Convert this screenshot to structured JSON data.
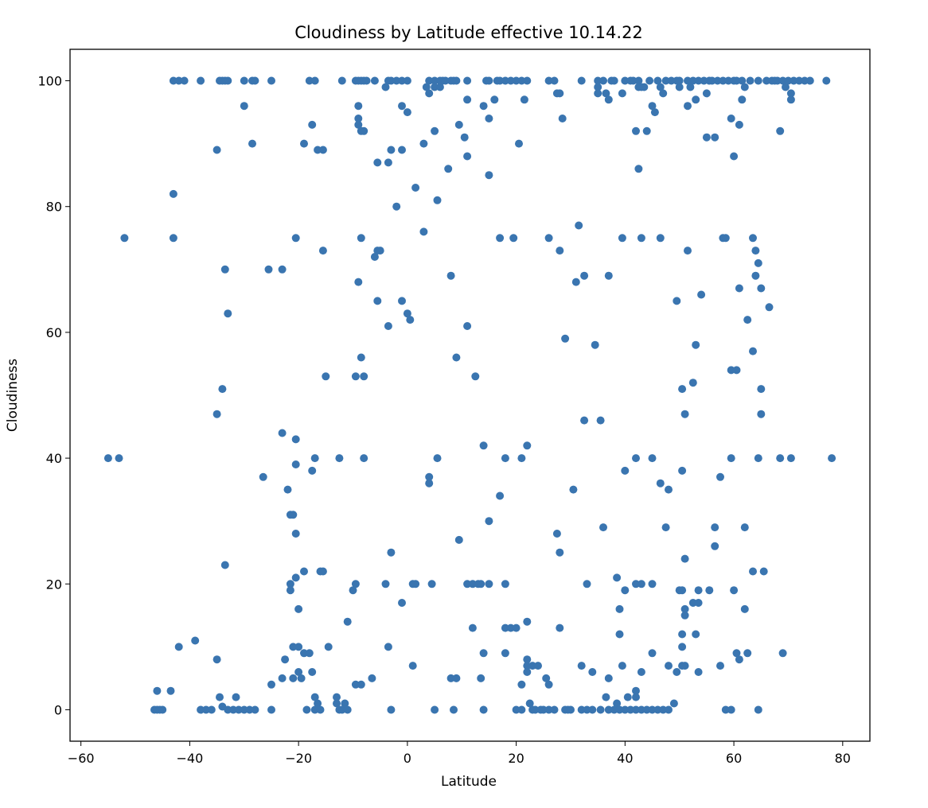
{
  "chart_data": {
    "type": "scatter",
    "title": "Cloudiness by Latitude effective 10.14.22",
    "xlabel": "Latitude",
    "ylabel": "Cloudiness",
    "xlim": [
      -62,
      85
    ],
    "ylim": [
      -5,
      105
    ],
    "xticks": [
      -60,
      -40,
      -20,
      0,
      20,
      40,
      60,
      80
    ],
    "yticks": [
      0,
      20,
      40,
      60,
      80,
      100
    ],
    "grid": false,
    "marker_color": "#3a75b0",
    "points": [
      [
        -55,
        40
      ],
      [
        -53,
        40
      ],
      [
        -52,
        75
      ],
      [
        -46.5,
        0
      ],
      [
        -46,
        0
      ],
      [
        -45.5,
        0
      ],
      [
        -45,
        0
      ],
      [
        -46,
        3
      ],
      [
        -43.5,
        3
      ],
      [
        -43,
        100
      ],
      [
        -42,
        100
      ],
      [
        -41,
        100
      ],
      [
        -38,
        100
      ],
      [
        -43,
        75
      ],
      [
        -43,
        82
      ],
      [
        -42,
        10
      ],
      [
        -39,
        11
      ],
      [
        -38,
        0
      ],
      [
        -37,
        0
      ],
      [
        -36,
        0
      ],
      [
        -35,
        8
      ],
      [
        -35,
        47
      ],
      [
        -35,
        89
      ],
      [
        -34.5,
        100
      ],
      [
        -34,
        100
      ],
      [
        -33.5,
        100
      ],
      [
        -33,
        100
      ],
      [
        -34,
        51
      ],
      [
        -33.5,
        70
      ],
      [
        -33,
        63
      ],
      [
        -33.5,
        23
      ],
      [
        -34.5,
        2
      ],
      [
        -34,
        0.5
      ],
      [
        -33,
        0
      ],
      [
        -32,
        0
      ],
      [
        -31.5,
        2
      ],
      [
        -31,
        0
      ],
      [
        -30,
        0
      ],
      [
        -29,
        0
      ],
      [
        -28,
        0
      ],
      [
        -30,
        100
      ],
      [
        -28.5,
        100
      ],
      [
        -28,
        100
      ],
      [
        -30,
        96
      ],
      [
        -28.5,
        90
      ],
      [
        -26.5,
        37
      ],
      [
        -25.5,
        70
      ],
      [
        -25,
        100
      ],
      [
        -25,
        4
      ],
      [
        -25,
        0
      ],
      [
        -23,
        70
      ],
      [
        -23,
        44
      ],
      [
        -22.5,
        8
      ],
      [
        -23,
        5
      ],
      [
        -22,
        35
      ],
      [
        -21.5,
        31
      ],
      [
        -21.5,
        20
      ],
      [
        -21.5,
        19
      ],
      [
        -21,
        31
      ],
      [
        -21,
        10
      ],
      [
        -20.5,
        43
      ],
      [
        -20.5,
        39
      ],
      [
        -20.5,
        28
      ],
      [
        -20.5,
        21
      ],
      [
        -20,
        16
      ],
      [
        -20,
        6
      ],
      [
        -20,
        10
      ],
      [
        -21,
        5
      ],
      [
        -19.5,
        5
      ],
      [
        -19,
        22
      ],
      [
        -19,
        9
      ],
      [
        -18.5,
        0
      ],
      [
        -20.5,
        75
      ],
      [
        -19,
        90
      ],
      [
        -18,
        100
      ],
      [
        -17,
        100
      ],
      [
        -17.5,
        93
      ],
      [
        -16.5,
        89
      ],
      [
        -15.5,
        89
      ],
      [
        -15.5,
        73
      ],
      [
        -15,
        53
      ],
      [
        -17.5,
        38
      ],
      [
        -17,
        40
      ],
      [
        -16,
        22
      ],
      [
        -15.5,
        22
      ],
      [
        -18,
        9
      ],
      [
        -17.5,
        6
      ],
      [
        -17,
        2
      ],
      [
        -16.5,
        1
      ],
      [
        -17,
        0
      ],
      [
        -16,
        0
      ],
      [
        -14.5,
        10
      ],
      [
        -13,
        2
      ],
      [
        -13,
        1
      ],
      [
        -12.5,
        0
      ],
      [
        -12,
        0
      ],
      [
        -11.5,
        1
      ],
      [
        -11,
        0
      ],
      [
        -12.5,
        40
      ],
      [
        -11,
        14
      ],
      [
        -12,
        100
      ],
      [
        -9.5,
        100
      ],
      [
        -9,
        100
      ],
      [
        -8.5,
        100
      ],
      [
        -8,
        100
      ],
      [
        -7.5,
        100
      ],
      [
        -6,
        100
      ],
      [
        -9,
        96
      ],
      [
        -9,
        94
      ],
      [
        -9,
        93
      ],
      [
        -8.5,
        92
      ],
      [
        -8,
        92
      ],
      [
        -9.5,
        53
      ],
      [
        -8,
        53
      ],
      [
        -8.5,
        56
      ],
      [
        -9,
        68
      ],
      [
        -8.5,
        75
      ],
      [
        -8,
        40
      ],
      [
        -10,
        19
      ],
      [
        -9.5,
        20
      ],
      [
        -9.5,
        4
      ],
      [
        -8.5,
        4
      ],
      [
        -6,
        72
      ],
      [
        -5.5,
        73
      ],
      [
        -5,
        73
      ],
      [
        -5.5,
        65
      ],
      [
        -5.5,
        87
      ],
      [
        -3.5,
        87
      ],
      [
        -3.5,
        61
      ],
      [
        -4,
        20
      ],
      [
        -6.5,
        5
      ],
      [
        -3.5,
        10
      ],
      [
        -3,
        0
      ],
      [
        -3,
        25
      ],
      [
        -4,
        99
      ],
      [
        -3.5,
        100
      ],
      [
        -3,
        100
      ],
      [
        -2,
        100
      ],
      [
        -1,
        100
      ],
      [
        0,
        100
      ],
      [
        -3,
        89
      ],
      [
        -1,
        89
      ],
      [
        -2,
        80
      ],
      [
        -1,
        96
      ],
      [
        0,
        95
      ],
      [
        -1,
        65
      ],
      [
        0,
        63
      ],
      [
        0.5,
        62
      ],
      [
        -1,
        17
      ],
      [
        1,
        20
      ],
      [
        1.5,
        20
      ],
      [
        1,
        7
      ],
      [
        1.5,
        83
      ],
      [
        3,
        76
      ],
      [
        3,
        90
      ],
      [
        3.5,
        99
      ],
      [
        4,
        100
      ],
      [
        4,
        98
      ],
      [
        5,
        100
      ],
      [
        5,
        99
      ],
      [
        6,
        99
      ],
      [
        6,
        100
      ],
      [
        6.5,
        100
      ],
      [
        7,
        100
      ],
      [
        8,
        100
      ],
      [
        8.5,
        100
      ],
      [
        9,
        100
      ],
      [
        5,
        92
      ],
      [
        5.5,
        81
      ],
      [
        4,
        37
      ],
      [
        4,
        36
      ],
      [
        4.5,
        20
      ],
      [
        5,
        0
      ],
      [
        5.5,
        40
      ],
      [
        7.5,
        86
      ],
      [
        8,
        69
      ],
      [
        8,
        5
      ],
      [
        8.5,
        0
      ],
      [
        9,
        5
      ],
      [
        9,
        56
      ],
      [
        9.5,
        27
      ],
      [
        9.5,
        93
      ],
      [
        10.5,
        91
      ],
      [
        11,
        88
      ],
      [
        11,
        97
      ],
      [
        11,
        100
      ],
      [
        11,
        61
      ],
      [
        11,
        20
      ],
      [
        12,
        20
      ],
      [
        12,
        13
      ],
      [
        12.5,
        53
      ],
      [
        13,
        20
      ],
      [
        13.5,
        5
      ],
      [
        13.5,
        20
      ],
      [
        14,
        96
      ],
      [
        14,
        9
      ],
      [
        14,
        0
      ],
      [
        14,
        42
      ],
      [
        14.5,
        100
      ],
      [
        15,
        100
      ],
      [
        15,
        94
      ],
      [
        15,
        85
      ],
      [
        15,
        30
      ],
      [
        15,
        20
      ],
      [
        16,
        97
      ],
      [
        16.5,
        100
      ],
      [
        17,
        100
      ],
      [
        17,
        34
      ],
      [
        17,
        75
      ],
      [
        18,
        100
      ],
      [
        18,
        40
      ],
      [
        18,
        20
      ],
      [
        18,
        13
      ],
      [
        18,
        9
      ],
      [
        19,
        100
      ],
      [
        19,
        13
      ],
      [
        20,
        100
      ],
      [
        19.5,
        75
      ],
      [
        20,
        13
      ],
      [
        20,
        0
      ],
      [
        20.5,
        90
      ],
      [
        21,
        100
      ],
      [
        21,
        40
      ],
      [
        21,
        4
      ],
      [
        21,
        0
      ],
      [
        21.5,
        97
      ],
      [
        22,
        100
      ],
      [
        22,
        42
      ],
      [
        22,
        14
      ],
      [
        22,
        8
      ],
      [
        22,
        7
      ],
      [
        22,
        6
      ],
      [
        22.5,
        1
      ],
      [
        23,
        0
      ],
      [
        23,
        7
      ],
      [
        23.5,
        0
      ],
      [
        24,
        7
      ],
      [
        24.5,
        0
      ],
      [
        25,
        0
      ],
      [
        25.5,
        5
      ],
      [
        26,
        100
      ],
      [
        26,
        75
      ],
      [
        26,
        4
      ],
      [
        26,
        0
      ],
      [
        27,
        100
      ],
      [
        27,
        0
      ],
      [
        27.5,
        98
      ],
      [
        27.5,
        28
      ],
      [
        28,
        98
      ],
      [
        28,
        73
      ],
      [
        28,
        25
      ],
      [
        28,
        13
      ],
      [
        28.5,
        94
      ],
      [
        29,
        59
      ],
      [
        29,
        0
      ],
      [
        29.5,
        0
      ],
      [
        30,
        0
      ],
      [
        30.5,
        35
      ],
      [
        31,
        68
      ],
      [
        31.5,
        77
      ],
      [
        32,
        100
      ],
      [
        32,
        7
      ],
      [
        32,
        0
      ],
      [
        32.5,
        46
      ],
      [
        32.5,
        69
      ],
      [
        33,
        20
      ],
      [
        33,
        0
      ],
      [
        34,
        6
      ],
      [
        34,
        0
      ],
      [
        34.5,
        58
      ],
      [
        35,
        100
      ],
      [
        35,
        99
      ],
      [
        35,
        98
      ],
      [
        35.5,
        46
      ],
      [
        35.5,
        0
      ],
      [
        36,
        29
      ],
      [
        36,
        100
      ],
      [
        36.5,
        98
      ],
      [
        36.5,
        2
      ],
      [
        37,
        97
      ],
      [
        37,
        69
      ],
      [
        37,
        5
      ],
      [
        37,
        0
      ],
      [
        37.5,
        100
      ],
      [
        38,
        100
      ],
      [
        38,
        0
      ],
      [
        38.5,
        1
      ],
      [
        38.5,
        21
      ],
      [
        39,
        16
      ],
      [
        39,
        12
      ],
      [
        39,
        0
      ],
      [
        39.5,
        98
      ],
      [
        39.5,
        75
      ],
      [
        39.5,
        7
      ],
      [
        40,
        100
      ],
      [
        40,
        38
      ],
      [
        40,
        19
      ],
      [
        40,
        0
      ],
      [
        40.5,
        2
      ],
      [
        41,
        100
      ],
      [
        41,
        0
      ],
      [
        41.5,
        100
      ],
      [
        42,
        92
      ],
      [
        42,
        40
      ],
      [
        42,
        20
      ],
      [
        42,
        3
      ],
      [
        42,
        2
      ],
      [
        42,
        0
      ],
      [
        42.5,
        100
      ],
      [
        42.5,
        86
      ],
      [
        42.5,
        99
      ],
      [
        43,
        99
      ],
      [
        43,
        75
      ],
      [
        43,
        20
      ],
      [
        43,
        6
      ],
      [
        43,
        0
      ],
      [
        43.5,
        99
      ],
      [
        44,
        92
      ],
      [
        44,
        0
      ],
      [
        44.5,
        100
      ],
      [
        45,
        96
      ],
      [
        45,
        40
      ],
      [
        45,
        20
      ],
      [
        45,
        9
      ],
      [
        45,
        0
      ],
      [
        45.5,
        95
      ],
      [
        46,
        100
      ],
      [
        46,
        0
      ],
      [
        46.5,
        75
      ],
      [
        46.5,
        99
      ],
      [
        46.5,
        36
      ],
      [
        47,
        98
      ],
      [
        47,
        0
      ],
      [
        47.5,
        100
      ],
      [
        47.5,
        29
      ],
      [
        48,
        35
      ],
      [
        48,
        7
      ],
      [
        48,
        0
      ],
      [
        48.5,
        100
      ],
      [
        49,
        1
      ],
      [
        49.5,
        100
      ],
      [
        49.5,
        6
      ],
      [
        49.5,
        65
      ],
      [
        50,
        99
      ],
      [
        50,
        19
      ],
      [
        50,
        100
      ],
      [
        50.5,
        51
      ],
      [
        50.5,
        38
      ],
      [
        50.5,
        19
      ],
      [
        50.5,
        12
      ],
      [
        50.5,
        10
      ],
      [
        50.5,
        7
      ],
      [
        51,
        47
      ],
      [
        51,
        24
      ],
      [
        51,
        16
      ],
      [
        51,
        15
      ],
      [
        51,
        7
      ],
      [
        51.5,
        96
      ],
      [
        51.5,
        73
      ],
      [
        51.5,
        100
      ],
      [
        52,
        99
      ],
      [
        52.5,
        100
      ],
      [
        52.5,
        52
      ],
      [
        52.5,
        17
      ],
      [
        53,
        97
      ],
      [
        53,
        12
      ],
      [
        53,
        58
      ],
      [
        53.5,
        100
      ],
      [
        53.5,
        17
      ],
      [
        53.5,
        19
      ],
      [
        53.5,
        6
      ],
      [
        54,
        66
      ],
      [
        54.5,
        100
      ],
      [
        55,
        98
      ],
      [
        55,
        91
      ],
      [
        55.5,
        100
      ],
      [
        55.5,
        19
      ],
      [
        56,
        100
      ],
      [
        56.5,
        91
      ],
      [
        56.5,
        29
      ],
      [
        56.5,
        26
      ],
      [
        57,
        100
      ],
      [
        57.5,
        7
      ],
      [
        57.5,
        37
      ],
      [
        58,
        100
      ],
      [
        58,
        75
      ],
      [
        58.5,
        75
      ],
      [
        58.5,
        0
      ],
      [
        59,
        100
      ],
      [
        59.5,
        94
      ],
      [
        59.5,
        54
      ],
      [
        59.5,
        40
      ],
      [
        59.5,
        0
      ],
      [
        60,
        100
      ],
      [
        60,
        88
      ],
      [
        60,
        19
      ],
      [
        60.5,
        100
      ],
      [
        60.5,
        54
      ],
      [
        60.5,
        9
      ],
      [
        61,
        67
      ],
      [
        61,
        93
      ],
      [
        61,
        8
      ],
      [
        61.5,
        97
      ],
      [
        61.5,
        100
      ],
      [
        62,
        99
      ],
      [
        62,
        29
      ],
      [
        62,
        16
      ],
      [
        62.5,
        62
      ],
      [
        62.5,
        9
      ],
      [
        63,
        100
      ],
      [
        63.5,
        75
      ],
      [
        63.5,
        57
      ],
      [
        63.5,
        22
      ],
      [
        64,
        73
      ],
      [
        64,
        69
      ],
      [
        64.5,
        71
      ],
      [
        64.5,
        100
      ],
      [
        64.5,
        40
      ],
      [
        64.5,
        0
      ],
      [
        65,
        67
      ],
      [
        65,
        51
      ],
      [
        65,
        47
      ],
      [
        65.5,
        22
      ],
      [
        66,
        100
      ],
      [
        66.5,
        64
      ],
      [
        67,
        100
      ],
      [
        67.5,
        100
      ],
      [
        68,
        100
      ],
      [
        68.5,
        92
      ],
      [
        68.5,
        40
      ],
      [
        69,
        100
      ],
      [
        69,
        9
      ],
      [
        69.5,
        99
      ],
      [
        70,
        100
      ],
      [
        70.5,
        97
      ],
      [
        70.5,
        98
      ],
      [
        70.5,
        40
      ],
      [
        71,
        100
      ],
      [
        72,
        100
      ],
      [
        73,
        100
      ],
      [
        74,
        100
      ],
      [
        77,
        100
      ],
      [
        78,
        40
      ]
    ]
  }
}
